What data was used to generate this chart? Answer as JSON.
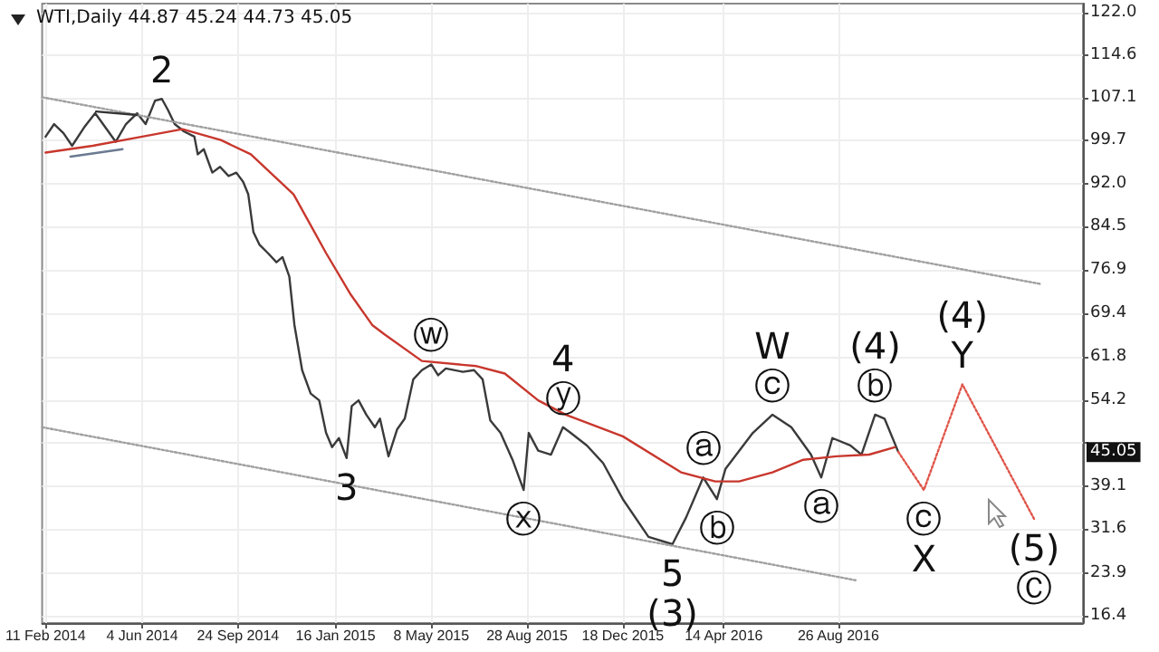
{
  "chart_data": {
    "type": "line",
    "title": "WTI,Daily 44.87 45.24 44.73 45.05",
    "series": [
      {
        "color": "#3a3a3a",
        "x": [
          "2014-02-11",
          "2014-02-21",
          "2014-03-04",
          "2014-03-14",
          "2014-03-28",
          "2014-04-10",
          "2014-04-22",
          "2014-05-04",
          "2014-05-16",
          "2014-05-29",
          "2014-06-08",
          "2014-06-19",
          "2014-06-27",
          "2014-07-04",
          "2014-07-12",
          "2014-07-23",
          "2014-08-04",
          "2014-08-08",
          "2014-08-15",
          "2014-08-25",
          "2014-09-03",
          "2014-09-13",
          "2014-09-22",
          "2014-09-30",
          "2014-10-06",
          "2014-10-12",
          "2014-10-19",
          "2014-10-29",
          "2014-11-08",
          "2014-11-15",
          "2014-11-23",
          "2014-11-29",
          "2014-12-08",
          "2014-12-18",
          "2014-12-28",
          "2015-01-05",
          "2015-01-12",
          "2015-01-20",
          "2015-01-29",
          "2015-02-04",
          "2015-02-12",
          "2015-02-21",
          "2015-03-03",
          "2015-03-09",
          "2015-03-19",
          "2015-03-29",
          "2015-04-07",
          "2015-04-17",
          "2015-04-27",
          "2015-05-08",
          "2015-05-16",
          "2015-05-25",
          "2015-06-14",
          "2015-06-27",
          "2015-07-07",
          "2015-07-16",
          "2015-07-28",
          "2015-08-11",
          "2015-08-24",
          "2015-08-30",
          "2015-09-10",
          "2015-09-25",
          "2015-10-09",
          "2015-10-18",
          "2015-11-06",
          "2015-11-25",
          "2015-12-18",
          "2016-01-17",
          "2016-02-14",
          "2016-03-01",
          "2016-03-21",
          "2016-04-06",
          "2016-04-16",
          "2016-05-18",
          "2016-06-10",
          "2016-07-02",
          "2016-07-25",
          "2016-08-06",
          "2016-08-19",
          "2016-09-09",
          "2016-09-22",
          "2016-10-08",
          "2016-10-19",
          "2016-11-04"
        ],
        "values": [
          100.3,
          102.5,
          100.9,
          98.7,
          101.9,
          104.4,
          101.9,
          99.4,
          102.5,
          104.4,
          102.5,
          106.6,
          106.9,
          105.0,
          102.5,
          101.2,
          100.3,
          97.2,
          98.1,
          94.0,
          95.0,
          93.4,
          94.0,
          92.4,
          90.2,
          83.6,
          81.4,
          79.9,
          78.3,
          79.2,
          75.8,
          67.3,
          59.4,
          55.3,
          54.1,
          48.4,
          45.9,
          47.5,
          44.0,
          53.1,
          54.1,
          51.6,
          49.4,
          50.9,
          44.3,
          49.0,
          50.9,
          57.8,
          59.4,
          60.4,
          58.5,
          59.7,
          59.1,
          59.4,
          57.8,
          50.6,
          48.4,
          43.7,
          38.4,
          48.4,
          45.3,
          44.6,
          49.4,
          48.4,
          46.2,
          43.1,
          36.8,
          30.2,
          28.9,
          33.6,
          40.6,
          36.8,
          42.1,
          48.4,
          51.6,
          49.4,
          44.6,
          40.6,
          47.5,
          46.2,
          44.6,
          51.6,
          50.9,
          45.1
        ]
      },
      {
        "color": "#c8372d",
        "x": [
          "2014-02-11",
          "2014-04-07",
          "2014-06-04",
          "2014-07-21",
          "2014-09-04",
          "2014-10-09",
          "2014-11-28",
          "2015-01-05",
          "2015-02-03",
          "2015-02-28",
          "2015-03-14",
          "2015-04-27",
          "2015-06-30",
          "2015-08-02",
          "2015-09-10",
          "2015-10-12",
          "2015-12-18",
          "2016-02-24",
          "2016-04-04",
          "2016-05-02",
          "2016-06-10",
          "2016-07-16",
          "2016-08-24",
          "2016-10-01",
          "2016-10-31"
        ],
        "values": [
          97.5,
          98.7,
          100.3,
          101.6,
          99.7,
          97.2,
          90.2,
          79.9,
          72.6,
          67.3,
          65.7,
          61.0,
          60.1,
          58.8,
          54.1,
          51.6,
          47.8,
          41.5,
          39.9,
          39.9,
          41.5,
          43.7,
          44.3,
          44.6,
          45.9
        ]
      },
      {
        "color": "#e0554a",
        "line_style": "dotted",
        "x": [
          "2016-11-04",
          "2016-12-04",
          "2017-01-18",
          "2017-04-12"
        ],
        "values": [
          45.1,
          38.4,
          56.9,
          33.3
        ]
      },
      {
        "color": "#a0a0a0",
        "line_style": "dotted",
        "x": [
          "2014-02-07",
          "2017-04-19"
        ],
        "values": [
          107.2,
          74.5
        ]
      },
      {
        "color": "#a0a0a0",
        "line_style": "dotted",
        "x": [
          "2014-02-07",
          "2016-09-15"
        ],
        "values": [
          49.4,
          22.6
        ]
      },
      {
        "color": "#333333",
        "x": [
          "2014-04-11",
          "2014-05-29"
        ],
        "values": [
          104.7,
          104.1
        ]
      },
      {
        "color": "#6a7a90",
        "x": [
          "2014-03-12",
          "2014-05-12"
        ],
        "values": [
          96.8,
          98.1
        ]
      }
    ],
    "line_style": "solid",
    "marker": "none",
    "grid": true,
    "xlim": [
      "2014-02-07",
      "2017-06-08"
    ],
    "xticks": [
      {
        "value": "2014-02-11",
        "label": "11 Feb 2014"
      },
      {
        "value": "2014-06-04",
        "label": "4 Jun 2014"
      },
      {
        "value": "2014-09-24",
        "label": "24 Sep 2014"
      },
      {
        "value": "2015-01-16",
        "label": "16 Jan 2015"
      },
      {
        "value": "2015-05-08",
        "label": "8 May 2015"
      },
      {
        "value": "2015-08-28",
        "label": "28 Aug 2015"
      },
      {
        "value": "2015-12-18",
        "label": "18 Dec 2015"
      },
      {
        "value": "2016-04-14",
        "label": "14 Apr 2016"
      },
      {
        "value": "2016-08-26",
        "label": "26 Aug 2016"
      }
    ],
    "ylim": [
      15.1,
      123.6
    ],
    "yticks": [
      {
        "value": 122,
        "label": "122.0"
      },
      114.6,
      107.1,
      99.7,
      {
        "value": 92,
        "label": "92.0"
      },
      84.5,
      76.9,
      69.4,
      61.8,
      54.2,
      {
        "value": 46.7,
        "label": null
      },
      39.1,
      31.6,
      23.9,
      16.4
    ],
    "annotations": [
      {
        "text": "2",
        "x": "2014-06-27",
        "y": 106.9
      },
      {
        "text": "3",
        "x": "2015-01-29",
        "y": 44.0
      },
      {
        "text": "ⓦ",
        "x": "2015-05-08",
        "y": 60.4
      },
      {
        "text": "ⓨ",
        "x": "2015-10-09",
        "y": 49.4
      },
      {
        "text": "4",
        "x": "2015-10-09",
        "y": 49.4
      },
      {
        "text": "ⓧ",
        "x": "2015-08-24",
        "y": 38.4
      },
      {
        "text": "5",
        "x": "2016-02-14",
        "y": 28.9
      },
      {
        "text": "(3)",
        "x": "2016-02-14",
        "y": 28.9
      },
      {
        "text": "ⓐ",
        "x": "2016-03-21",
        "y": 40.6
      },
      {
        "text": "ⓑ",
        "x": "2016-04-06",
        "y": 36.8
      },
      {
        "text": "ⓒ",
        "x": "2016-06-10",
        "y": 51.6
      },
      {
        "text": "W",
        "x": "2016-06-10",
        "y": 51.6
      },
      {
        "text": "ⓐ",
        "x": "2016-08-06",
        "y": 40.6
      },
      {
        "text": "ⓑ",
        "x": "2016-10-08",
        "y": 51.6
      },
      {
        "text": "(4)",
        "x": "2016-10-08",
        "y": 51.6
      },
      {
        "text": "Y",
        "x": "2017-01-18",
        "y": 56.9
      },
      {
        "text": "(4)",
        "x": "2017-01-18",
        "y": 56.9
      },
      {
        "text": "ⓒ",
        "x": "2016-12-04",
        "y": 38.4
      },
      {
        "text": "X",
        "x": "2016-12-04",
        "y": 38.4
      },
      {
        "text": "(5)",
        "x": "2017-04-12",
        "y": 33.3
      },
      {
        "text": "Ⓒ",
        "x": "2017-04-12",
        "y": 33.3
      },
      {
        "text": "45.05",
        "y": 45.05
      }
    ]
  }
}
